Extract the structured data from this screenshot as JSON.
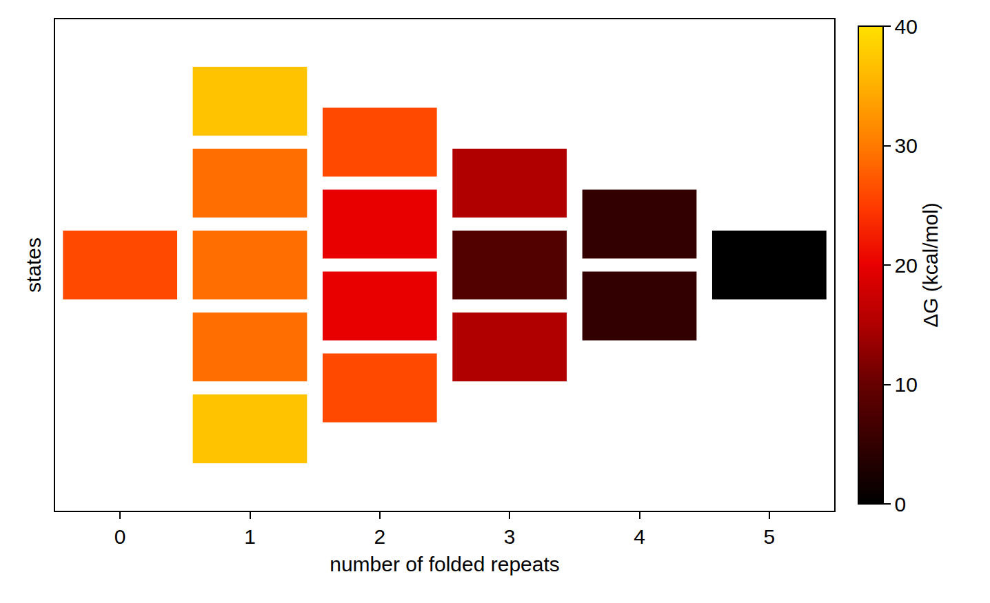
{
  "chart_data": {
    "type": "heatmap",
    "xlabel": "number of folded repeats",
    "ylabel": "states",
    "categories": [
      0,
      1,
      2,
      3,
      4,
      5
    ],
    "cells": [
      [
        26
      ],
      [
        37,
        29,
        29,
        29,
        37
      ],
      [
        26,
        20,
        20,
        26
      ],
      [
        15,
        8,
        15
      ],
      [
        5,
        5
      ],
      [
        0
      ]
    ],
    "xlim": [
      -0.5,
      5.5
    ],
    "xticks": [
      0,
      1,
      2,
      3,
      4,
      5
    ],
    "tick_labels": "x",
    "colorbar": {
      "title": "ΔG (kcal/mol)",
      "range": [
        0,
        40
      ],
      "ticks": [
        0,
        10,
        20,
        30,
        40
      ]
    }
  }
}
